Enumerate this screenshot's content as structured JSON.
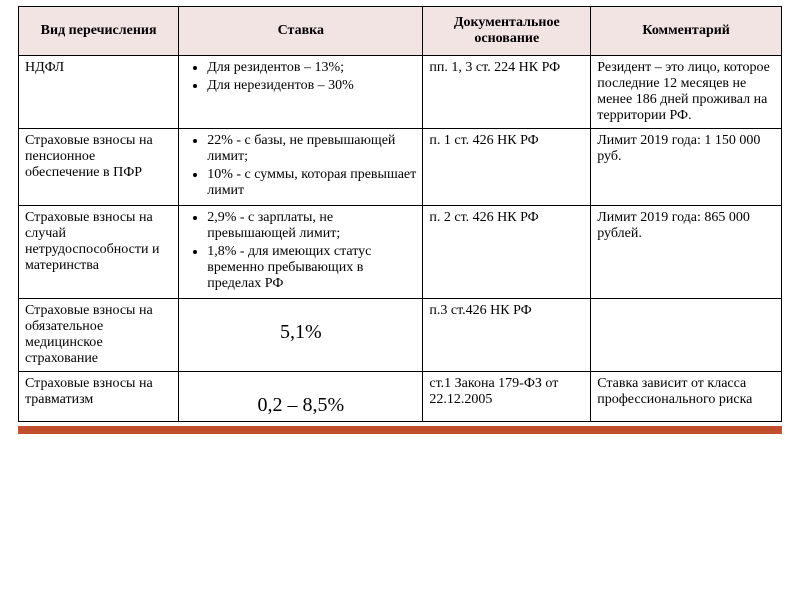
{
  "colors": {
    "header_bg": "#f3e4e4",
    "border": "#000000",
    "footer_bar": "#c14f2e",
    "text": "#000000",
    "page_bg": "#ffffff"
  },
  "table": {
    "headers": {
      "col1": "Вид перечисления",
      "col2": "Ставка",
      "col3": "Документальное основание",
      "col4": "Комментарий"
    },
    "rows": [
      {
        "type": "НДФЛ",
        "rate_style": "list",
        "rate_items": [
          "Для резидентов – 13%;",
          "Для нерезидентов – 30%"
        ],
        "basis": "пп. 1, 3 ст. 224 НК РФ",
        "comment": "Резидент – это лицо, которое последние 12 месяцев не менее 186 дней проживал на территории РФ."
      },
      {
        "type": "Страховые взносы на пенсионное обеспечение в ПФР",
        "rate_style": "list",
        "rate_items": [
          "22% - с базы, не превышающей лимит;",
          "10% - с суммы, которая превышает лимит"
        ],
        "basis": "п. 1 ст. 426 НК РФ",
        "comment": "Лимит 2019 года: 1 150 000 руб."
      },
      {
        "type": "Страховые взносы на случай нетрудоспособности и материнства",
        "rate_style": "list",
        "rate_items": [
          "2,9% - с зарплаты, не превышающей лимит;",
          "1,8% - для имеющих статус временно пребывающих в пределах РФ"
        ],
        "basis": "п. 2 ст. 426 НК РФ",
        "comment": "Лимит 2019 года: 865 000 рублей."
      },
      {
        "type": "Страховые взносы на обязательное медицинское страхование",
        "rate_style": "big",
        "rate_big": "5,1%",
        "basis": "п.3 ст.426 НК РФ",
        "comment": ""
      },
      {
        "type": "Страховые взносы на травматизм",
        "rate_style": "big",
        "rate_big": "0,2 – 8,5%",
        "basis": "ст.1 Закона 179-ФЗ от 22.12.2005",
        "comment": "Ставка зависит от класса профессионального риска"
      }
    ]
  }
}
